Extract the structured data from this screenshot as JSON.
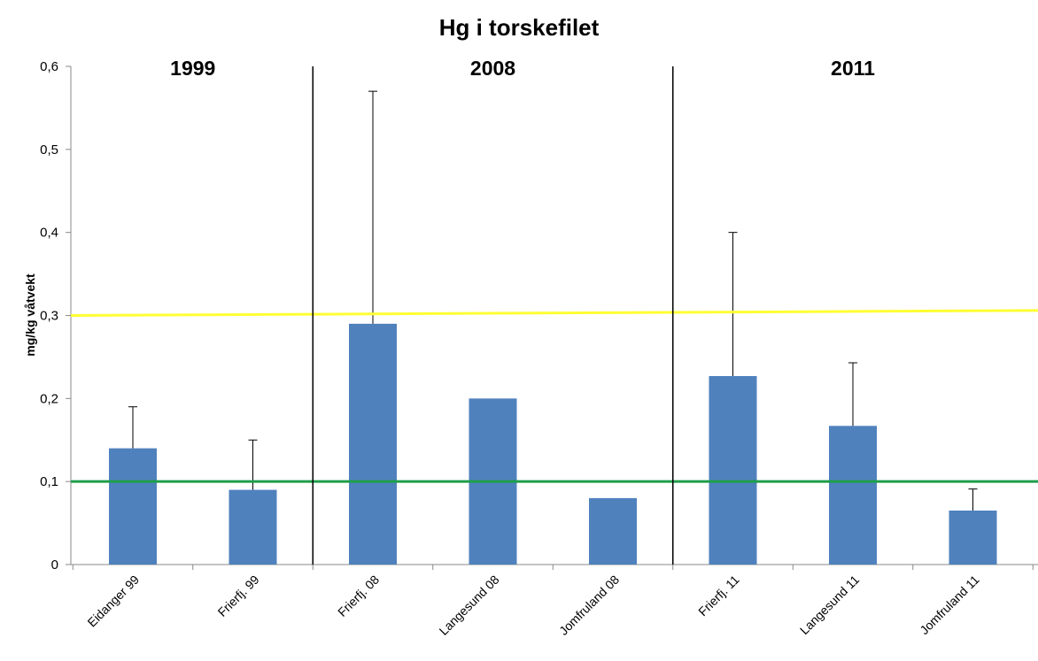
{
  "chart_data": {
    "type": "bar",
    "title": "Hg i torskefilet",
    "xlabel": "",
    "ylabel": "mg/kg våtvekt",
    "ylim": [
      0,
      0.6
    ],
    "yticks": [
      0,
      0.1,
      0.2,
      0.3,
      0.4,
      0.5,
      0.6
    ],
    "ytick_labels": [
      "0",
      "0,1",
      "0,2",
      "0,3",
      "0,4",
      "0,5",
      "0,6"
    ],
    "grid": false,
    "categories": [
      "Eidanger 99",
      "Frierfj. 99",
      "Frierfj. 08",
      "Langesund 08",
      "Jomfruland 08",
      "Frierfj. 11",
      "Langesund 11",
      "Jomfruland 11"
    ],
    "values": [
      0.14,
      0.09,
      0.29,
      0.2,
      0.08,
      0.227,
      0.167,
      0.065
    ],
    "error_upper": [
      0.19,
      0.15,
      0.57,
      null,
      null,
      0.4,
      0.243,
      0.091
    ],
    "bar_color": "#4F81BD",
    "groups": [
      {
        "label": "1999",
        "start": 0,
        "end": 1
      },
      {
        "label": "2008",
        "start": 2,
        "end": 4
      },
      {
        "label": "2011",
        "start": 5,
        "end": 7
      }
    ],
    "reference_lines": [
      {
        "y_start": 0.3,
        "y_end": 0.306,
        "color": "#FFFF33"
      },
      {
        "y_start": 0.1,
        "y_end": 0.1,
        "color": "#1E9E4A"
      }
    ]
  }
}
